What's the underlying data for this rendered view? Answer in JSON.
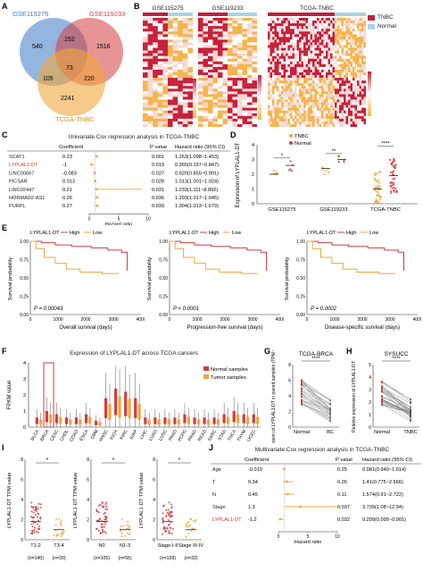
{
  "colors": {
    "red": "#d43c3c",
    "orange": "#f0a63a",
    "blue": "#3b78c4",
    "grey": "#8c8c8c",
    "heat_high": "#c8203a",
    "heat_low": "#f5b54a",
    "heat_mid": "#ffffff",
    "tnbc_legend": "#c0203a",
    "normal_legend": "#a8d3e6"
  },
  "panels": {
    "A": "A",
    "B": "B",
    "C": "C",
    "D": "D",
    "E": "E",
    "F": "F",
    "G": "G",
    "H": "H",
    "I": "I",
    "J": "J"
  },
  "venn": {
    "set1": "GSE115275",
    "set2": "GSE119233",
    "set3": "TCGA-TNBC",
    "only1": "540",
    "only2": "1516",
    "only3": "2241",
    "ab": "152",
    "ac": "105",
    "bc": "220",
    "abc": "73"
  },
  "heatmap": {
    "titles": [
      "GSE115275",
      "GSE119233",
      "TCGA-TNBC"
    ],
    "legend": [
      "TNBC",
      "Normal"
    ],
    "scale_ticks_1": [
      "2",
      "1",
      "0",
      "-1",
      "-2"
    ],
    "scale_ticks_2": [
      "3",
      "2",
      "1",
      "0",
      "-1",
      "-2",
      "-3"
    ],
    "scale_ticks_3": [
      "2",
      "1",
      "0",
      "-1",
      "-2"
    ]
  },
  "cox_uni": {
    "title": "Univariate Cox regression analysis in TCGA-TNBC",
    "headers": [
      "Coefficient",
      "P value",
      "Hazard ratio (95% CI)"
    ],
    "rows": [
      {
        "gene": "SCAT1",
        "coef": "0.23",
        "p": "0.001",
        "hr": "1.263(1.098~1.453)",
        "hr_v": 1.263,
        "lo": 1.098,
        "hi": 1.453
      },
      {
        "gene": "LYPLAL1-DT",
        "coef": "-1",
        "p": "0.019",
        "hr": "0.365(0.157~0.847)",
        "hr_v": 0.365,
        "lo": 0.157,
        "hi": 0.847
      },
      {
        "gene": "LINC00667",
        "coef": "-0.083",
        "p": "0.027",
        "hr": "0.920(0.855~0.991)",
        "hr_v": 0.92,
        "lo": 0.855,
        "hi": 0.991
      },
      {
        "gene": "PICSAR",
        "coef": "0.013",
        "p": "0.028",
        "hr": "1.013(1.001~1.024)",
        "hr_v": 1.013,
        "lo": 1.001,
        "hi": 1.024
      },
      {
        "gene": "LINC02447",
        "coef": "0.21",
        "p": "0.031",
        "hr": "1.233(1.111~8.892)",
        "hr_v": 1.233,
        "lo": 1.111,
        "hi": 8.892
      },
      {
        "gene": "HORMAD2-AS1",
        "coef": "0.26",
        "p": "0.036",
        "hr": "1.293(1.017~1.645)",
        "hr_v": 1.293,
        "lo": 1.017,
        "hi": 1.645
      },
      {
        "gene": "PURPL",
        "coef": "0.27",
        "p": "0.039",
        "hr": "1.304(1.013~1.679)",
        "hr_v": 1.304,
        "lo": 1.013,
        "hi": 1.679
      }
    ],
    "axis_ticks": [
      "0",
      "5",
      "10"
    ],
    "xlabel": "Hazard ratio"
  },
  "panel_d": {
    "ylabel": "Expression of LYPLAL1-DT",
    "legend": [
      "TNBC",
      "Normal"
    ],
    "groups": [
      "GSE115275",
      "GSE119233",
      "TCGA-TNBC"
    ],
    "sig": [
      "*",
      "**",
      "****"
    ],
    "yticks": [
      "0",
      "1",
      "2",
      "3",
      "4"
    ]
  },
  "survival": {
    "legend_title": "LYPLAL1-DT",
    "legend": [
      "High",
      "Low"
    ],
    "ylabel": "Survival probability",
    "yticks": [
      "1.00",
      "0.75",
      "0.50",
      "0.25",
      "0.00"
    ],
    "xticks": [
      "0",
      "1000",
      "2000",
      "3000",
      "4000"
    ],
    "plots": [
      {
        "p": "P = 0.00043",
        "xlabel": "Overall survival (days)"
      },
      {
        "p": "P < 0.0001",
        "xlabel": "Progression-free survival (days)"
      },
      {
        "p": "P = 0.0002",
        "xlabel": "Disease-specific survival (days)"
      }
    ]
  },
  "panel_f": {
    "title": "Expression of LYPLAL1-DT across TCGA cancers",
    "ylabel": "FPKM value",
    "legend": [
      "Normal samples",
      "Tumor samples"
    ],
    "yticks": [
      "4",
      "3",
      "2",
      "1",
      "0"
    ],
    "cancers": [
      "BLCA",
      "BRCA",
      "CESC",
      "CHOL",
      "COAD",
      "ESCA",
      "GBM",
      "HNSC",
      "KICH",
      "KIRC",
      "KIRP",
      "LIHC",
      "LUAD",
      "LUSC",
      "PAAD",
      "PCPG",
      "PRAD",
      "READ",
      "SARC",
      "STAD",
      "THCA",
      "THYM",
      "UCEC"
    ]
  },
  "panel_g": {
    "title": "TCGA-BRCA",
    "ylabel": "Expression of LYPLAL1-DT in paired samples (TPM value)",
    "groups": [
      "Normal",
      "BC"
    ],
    "sig": "****",
    "yticks": [
      "8",
      "6",
      "4",
      "2",
      "0"
    ]
  },
  "panel_h": {
    "title": "SYSUCC",
    "ylabel": "Relative expression of LYPLAL1-DT",
    "groups": [
      "Normal",
      "TNBC"
    ],
    "sig": "****",
    "yticks": [
      "5",
      "4",
      "3",
      "2",
      "1",
      "0"
    ]
  },
  "panel_i": {
    "ylabel": "LYPLAL1-DT TPM value",
    "yticks": [
      "8",
      "6",
      "4",
      "2",
      "0"
    ],
    "sig": "*",
    "plots": [
      {
        "g1": "T1-2",
        "g2": "T3-4",
        "n1": "(n=140)",
        "n2": "(n=20)"
      },
      {
        "g1": "N0",
        "g2": "N1-3",
        "n1": "(n=105)",
        "n2": "(n=55)"
      },
      {
        "g1": "Stage I-II",
        "g2": "Stage III-IV",
        "n1": "(n=128)",
        "n2": "(n=32)"
      }
    ]
  },
  "cox_multi": {
    "title": "Multivariate Cox regression analysis in TCGA-TNBC",
    "headers": [
      "Coefficient",
      "P value",
      "Hazard ratio (95% CI)"
    ],
    "rows": [
      {
        "var": "Age",
        "coef": "-0.019",
        "p": "0.25",
        "hr": "0.981(0.949~1.014)",
        "hr_v": 0.981,
        "lo": 0.949,
        "hi": 1.014
      },
      {
        "var": "T",
        "coef": "0.34",
        "p": "0.26",
        "hr": "1.41(0.775~2.566)",
        "hr_v": 1.41,
        "lo": 0.775,
        "hi": 2.566
      },
      {
        "var": "N",
        "coef": "0.45",
        "p": "0.11",
        "hr": "1.574(0.91~2.722)",
        "hr_v": 1.574,
        "lo": 0.91,
        "hi": 2.722
      },
      {
        "var": "Stage",
        "coef": "1.3",
        "p": "0.037",
        "hr": "3.739(1.08~12.94)",
        "hr_v": 3.739,
        "lo": 1.08,
        "hi": 12.94
      },
      {
        "var": "LYPLAL1-DT",
        "coef": "-1.2",
        "p": "0.032",
        "hr": "0.299(0.099~0.901)",
        "hr_v": 0.299,
        "lo": 0.099,
        "hi": 0.901
      }
    ],
    "axis_ticks": [
      "0",
      "5",
      "10"
    ],
    "xlabel": "Hazard ratio"
  }
}
